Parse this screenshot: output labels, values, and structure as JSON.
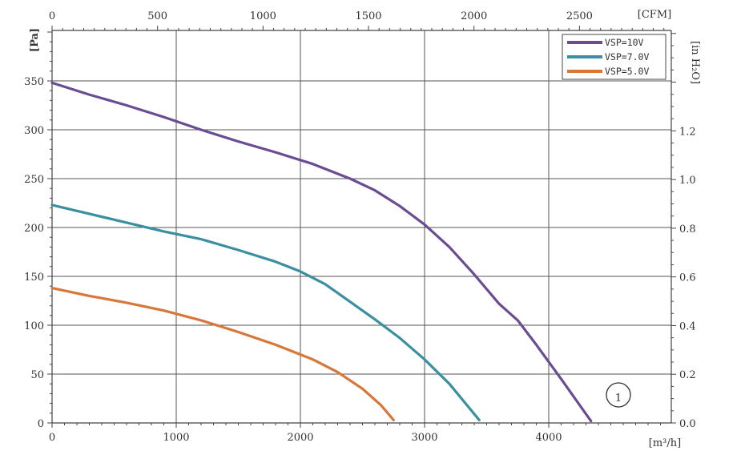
{
  "chart_data": {
    "type": "line",
    "x_unit_label": "[m³/h]",
    "x2_unit_label": "[CFM]",
    "y_unit_label": "[Pa]",
    "y2_unit_label": "[in H₂O]",
    "xlim": [
      0,
      5000
    ],
    "ylim": [
      0,
      400
    ],
    "x_ticks": [
      0,
      1000,
      2000,
      3000,
      4000
    ],
    "x2_ticks": [
      0,
      500,
      1000,
      1500,
      2000,
      2500
    ],
    "y_ticks": [
      0,
      50,
      100,
      150,
      200,
      250,
      300,
      350
    ],
    "y2_ticks": [
      "0.0",
      "0.2",
      "0.4",
      "0.6",
      "0.8",
      "1.0",
      "1.2"
    ],
    "grid": true,
    "legend_position": "top-right",
    "series": [
      {
        "name": "VSP=10V",
        "color": "#6a4c93",
        "points": [
          [
            0,
            348
          ],
          [
            300,
            336
          ],
          [
            600,
            325
          ],
          [
            900,
            313
          ],
          [
            1200,
            300
          ],
          [
            1500,
            288
          ],
          [
            1800,
            277
          ],
          [
            2100,
            265
          ],
          [
            2400,
            250
          ],
          [
            2600,
            238
          ],
          [
            2800,
            222
          ],
          [
            3000,
            203
          ],
          [
            3200,
            180
          ],
          [
            3400,
            152
          ],
          [
            3600,
            122
          ],
          [
            3750,
            105
          ],
          [
            3900,
            80
          ],
          [
            4100,
            45
          ],
          [
            4340,
            2
          ]
        ]
      },
      {
        "name": "VSP=7.0V",
        "color": "#3a8fa0",
        "points": [
          [
            0,
            223
          ],
          [
            300,
            214
          ],
          [
            600,
            205
          ],
          [
            900,
            196
          ],
          [
            1200,
            188
          ],
          [
            1500,
            177
          ],
          [
            1800,
            165
          ],
          [
            2000,
            155
          ],
          [
            2200,
            142
          ],
          [
            2400,
            124
          ],
          [
            2600,
            106
          ],
          [
            2800,
            87
          ],
          [
            3000,
            65
          ],
          [
            3200,
            40
          ],
          [
            3440,
            3
          ]
        ]
      },
      {
        "name": "VSP=5.0V",
        "color": "#d9763a",
        "points": [
          [
            0,
            138
          ],
          [
            300,
            130
          ],
          [
            600,
            123
          ],
          [
            900,
            115
          ],
          [
            1200,
            105
          ],
          [
            1500,
            93
          ],
          [
            1800,
            80
          ],
          [
            2100,
            65
          ],
          [
            2300,
            52
          ],
          [
            2500,
            35
          ],
          [
            2650,
            18
          ],
          [
            2750,
            3
          ]
        ]
      }
    ],
    "annotation": "①"
  }
}
